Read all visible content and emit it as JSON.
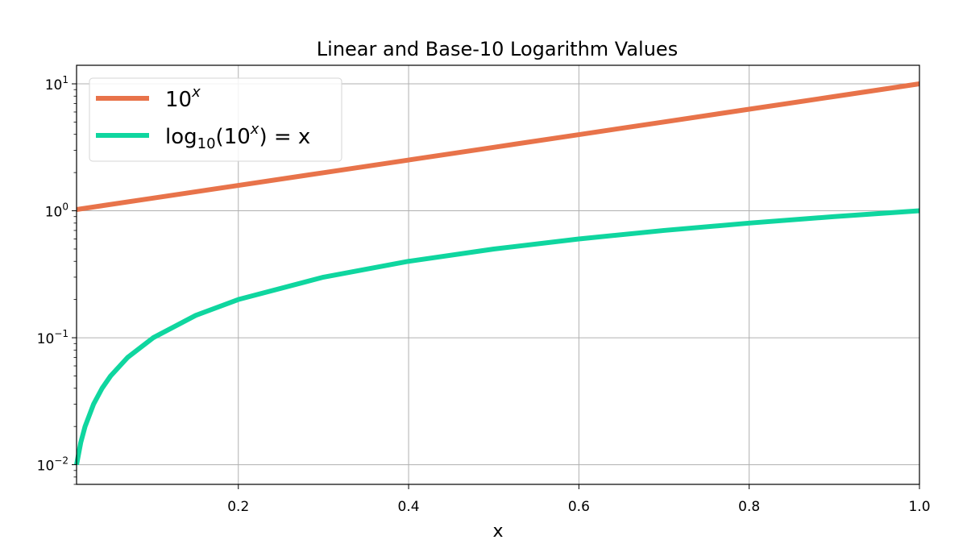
{
  "chart_data": {
    "type": "line",
    "title": "Linear and Base-10 Logarithm Values",
    "xlabel": "x",
    "ylabel": "",
    "xlim": [
      0.01,
      1.0
    ],
    "ylim": [
      0.007,
      14
    ],
    "yscale": "log",
    "grid": true,
    "legend_position": "top-left",
    "x_ticks": [
      0.2,
      0.4,
      0.6,
      0.8,
      1.0
    ],
    "x_tick_labels": [
      "0.2",
      "0.4",
      "0.6",
      "0.8",
      "1.0"
    ],
    "y_ticks": [
      0.01,
      0.1,
      1,
      10
    ],
    "y_tick_labels": [
      {
        "base": "10",
        "exp": "−2"
      },
      {
        "base": "10",
        "exp": "−1"
      },
      {
        "base": "10",
        "exp": "0"
      },
      {
        "base": "10",
        "exp": "1"
      }
    ],
    "series": [
      {
        "name": "10^x",
        "legend": {
          "base": "10",
          "sup": "x"
        },
        "color": "#e8734a",
        "x": [
          0.01,
          0.1,
          0.2,
          0.3,
          0.4,
          0.5,
          0.6,
          0.7,
          0.8,
          0.9,
          1.0
        ],
        "y": [
          1.023,
          1.259,
          1.585,
          1.995,
          2.512,
          3.162,
          3.981,
          5.012,
          6.31,
          7.943,
          10.0
        ]
      },
      {
        "name": "log10(10^x) = x",
        "legend": {
          "pre": "log",
          "sub": "10",
          "mid": "(10",
          "sup": "x",
          "post": ") = x"
        },
        "color": "#0fd69f",
        "x": [
          0.01,
          0.015,
          0.02,
          0.03,
          0.04,
          0.05,
          0.07,
          0.1,
          0.15,
          0.2,
          0.3,
          0.4,
          0.5,
          0.6,
          0.7,
          0.8,
          0.9,
          1.0
        ],
        "y": [
          0.01,
          0.015,
          0.02,
          0.03,
          0.04,
          0.05,
          0.07,
          0.1,
          0.15,
          0.2,
          0.3,
          0.4,
          0.5,
          0.6,
          0.7,
          0.8,
          0.9,
          1.0
        ]
      }
    ]
  }
}
